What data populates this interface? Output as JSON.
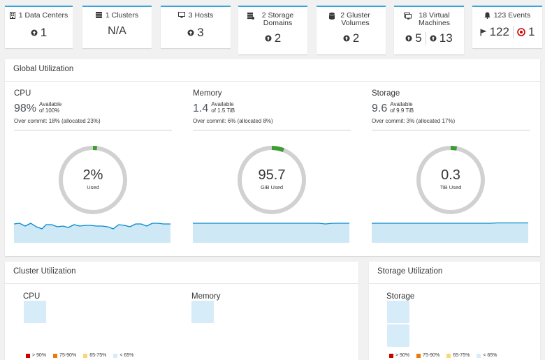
{
  "cards": {
    "data_centers": {
      "title": "1 Data Centers",
      "up_count": "1"
    },
    "clusters": {
      "title": "1 Clusters",
      "value": "N/A"
    },
    "hosts": {
      "title": "3 Hosts",
      "up_count": "3"
    },
    "storage_domains": {
      "title": "2 Storage Domains",
      "up_count": "2"
    },
    "gluster_volumes": {
      "title": "2 Gluster Volumes",
      "up_count": "2"
    },
    "virtual_machines": {
      "title": "18 Virtual Machines",
      "up_count": "5",
      "count_2": "13"
    },
    "events": {
      "title": "123 Events",
      "flag_count": "122",
      "alert_count": "1"
    }
  },
  "global": {
    "title": "Global Utilization",
    "cpu": {
      "title": "CPU",
      "available": "98%",
      "available_label": "Available",
      "of": "of 100%",
      "overcommit": "Over commit: 18% (allocated 23%)",
      "used_value": "2%",
      "used_label": "Used",
      "used_fraction": 0.02
    },
    "memory": {
      "title": "Memory",
      "available": "1.4",
      "available_label": "Available",
      "of": "of 1.5 TiB",
      "overcommit": "Over commit: 6% (allocated 8%)",
      "used_value": "95.7",
      "used_label": "GiB Used",
      "used_fraction": 0.06
    },
    "storage": {
      "title": "Storage",
      "available": "9.6",
      "available_label": "Available",
      "of": "of 9.9 TiB",
      "overcommit": "Over commit: 3% (allocated 17%)",
      "used_value": "0.3",
      "used_label": "TiB Used",
      "used_fraction": 0.03
    }
  },
  "cluster_util": {
    "title": "Cluster Utilization",
    "cpu_label": "CPU",
    "memory_label": "Memory"
  },
  "storage_util": {
    "title": "Storage Utilization",
    "storage_label": "Storage"
  },
  "legend": [
    {
      "label": "> 90%",
      "color": "#cc0000"
    },
    {
      "label": "75-90%",
      "color": "#ec7a08"
    },
    {
      "label": "65-75%",
      "color": "#f9d67a"
    },
    {
      "label": "< 65%",
      "color": "#d6ecf8"
    }
  ],
  "colors": {
    "accent": "#39a5dc",
    "used": "#3f9c35",
    "track": "#d1d1d1",
    "spark_line": "#0088ce",
    "spark_fill": "#cfe8f6"
  }
}
